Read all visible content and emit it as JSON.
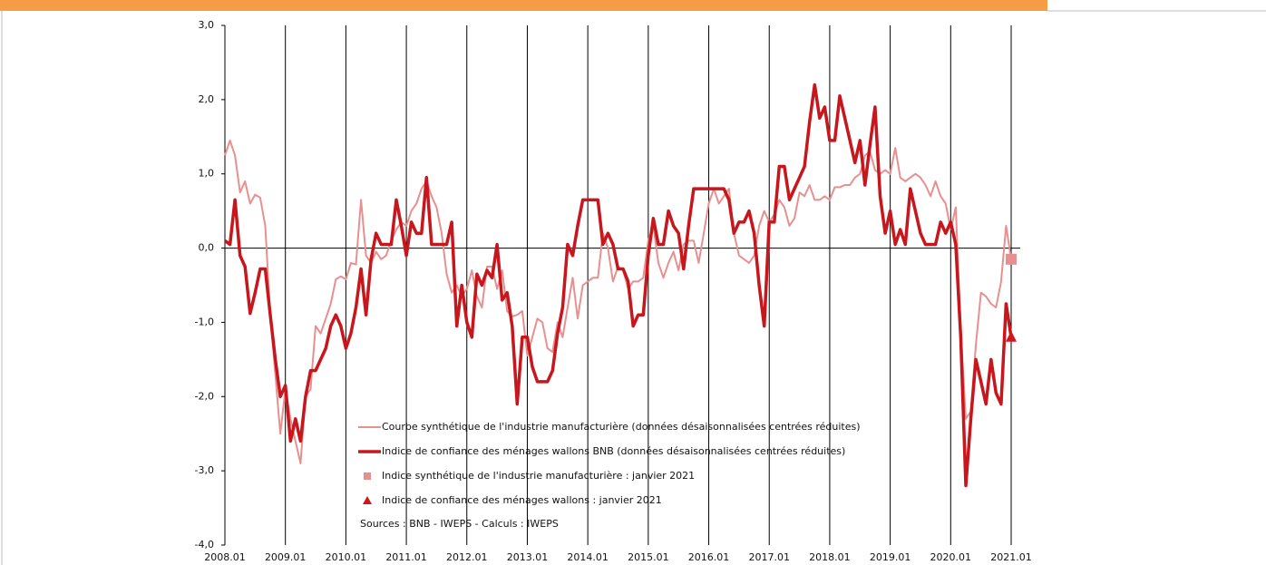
{
  "chart_data": {
    "type": "line",
    "categories": [
      "2008.01",
      null,
      null,
      null,
      null,
      null,
      null,
      null,
      null,
      null,
      null,
      null,
      "2009.01",
      null,
      null,
      null,
      null,
      null,
      null,
      null,
      null,
      null,
      null,
      null,
      "2010.01",
      null,
      null,
      null,
      null,
      null,
      null,
      null,
      null,
      null,
      null,
      null,
      "2011.01",
      null,
      null,
      null,
      null,
      null,
      null,
      null,
      null,
      null,
      null,
      null,
      "2012.01",
      null,
      null,
      null,
      null,
      null,
      null,
      null,
      null,
      null,
      null,
      null,
      "2013.01",
      null,
      null,
      null,
      null,
      null,
      null,
      null,
      null,
      null,
      null,
      null,
      "2014.01",
      null,
      null,
      null,
      null,
      null,
      null,
      null,
      null,
      null,
      null,
      null,
      "2015.01",
      null,
      null,
      null,
      null,
      null,
      null,
      null,
      null,
      null,
      null,
      null,
      "2016.01",
      null,
      null,
      null,
      null,
      null,
      null,
      null,
      null,
      null,
      null,
      null,
      "2017.01",
      null,
      null,
      null,
      null,
      null,
      null,
      null,
      null,
      null,
      null,
      null,
      "2018.01",
      null,
      null,
      null,
      null,
      null,
      null,
      null,
      null,
      null,
      null,
      null,
      "2019.01",
      null,
      null,
      null,
      null,
      null,
      null,
      null,
      null,
      null,
      null,
      null,
      "2020.01",
      null,
      null,
      null,
      null,
      null,
      null,
      null,
      null,
      null,
      null,
      null,
      "2021.01"
    ],
    "series": [
      {
        "name": "Courbe synthétique de l'industrie manufacturière (données désaisonnalisées centrées réduites)",
        "color": "#e8908f",
        "width": 2,
        "values": [
          1.25,
          1.45,
          1.25,
          0.75,
          0.9,
          0.6,
          0.72,
          0.68,
          0.3,
          -0.9,
          -1.7,
          -2.5,
          -1.9,
          -2.3,
          -2.6,
          -2.9,
          -2.0,
          -1.9,
          -1.05,
          -1.15,
          -0.95,
          -0.75,
          -0.42,
          -0.38,
          -0.42,
          -0.2,
          -0.22,
          0.65,
          -0.1,
          -0.2,
          -0.05,
          -0.15,
          -0.1,
          0.1,
          0.25,
          0.35,
          0.3,
          0.5,
          0.6,
          0.8,
          0.9,
          0.7,
          0.55,
          0.2,
          -0.35,
          -0.6,
          -0.5,
          -0.65,
          -0.55,
          -0.3,
          -0.65,
          -0.8,
          -0.25,
          -0.25,
          -0.55,
          -0.3,
          -0.85,
          -0.92,
          -0.9,
          -0.85,
          -1.45,
          -1.2,
          -0.95,
          -1.0,
          -1.35,
          -1.4,
          -1.0,
          -1.2,
          -0.8,
          -0.4,
          -0.95,
          -0.5,
          -0.45,
          -0.4,
          -0.4,
          0.2,
          0.0,
          -0.45,
          -0.25,
          -0.3,
          -0.55,
          -0.45,
          -0.45,
          -0.4,
          0.1,
          0.3,
          -0.2,
          -0.4,
          -0.2,
          -0.05,
          -0.3,
          0.05,
          0.1,
          0.1,
          -0.2,
          0.2,
          0.6,
          0.8,
          0.6,
          0.7,
          0.8,
          0.2,
          -0.1,
          -0.15,
          -0.2,
          -0.1,
          0.3,
          0.5,
          0.35,
          0.45,
          0.65,
          0.55,
          0.3,
          0.4,
          0.75,
          0.7,
          0.85,
          0.65,
          0.65,
          0.7,
          0.65,
          0.82,
          0.82,
          0.85,
          0.85,
          0.95,
          1.0,
          1.25,
          1.3,
          1.05,
          1.0,
          1.05,
          1.0,
          1.35,
          0.95,
          0.9,
          0.95,
          1.0,
          0.95,
          0.85,
          0.7,
          0.9,
          0.7,
          0.6,
          0.25,
          0.55,
          -1.1,
          -2.3,
          -2.2,
          -1.3,
          -0.6,
          -0.65,
          -0.75,
          -0.8,
          -0.45,
          0.3,
          -0.15
        ]
      },
      {
        "name": "Indice de confiance des ménages wallons BNB (données désaisonnalisées centrées réduites)",
        "color": "#c8161d",
        "width": 3.5,
        "values": [
          0.1,
          0.05,
          0.65,
          -0.1,
          -0.25,
          -0.88,
          -0.6,
          -0.28,
          -0.28,
          -0.9,
          -1.5,
          -2.0,
          -1.85,
          -2.6,
          -2.3,
          -2.6,
          -2.0,
          -1.65,
          -1.65,
          -1.5,
          -1.35,
          -1.05,
          -0.9,
          -1.05,
          -1.35,
          -1.15,
          -0.8,
          -0.28,
          -0.9,
          -0.15,
          0.2,
          0.05,
          0.05,
          0.05,
          0.65,
          0.3,
          -0.1,
          0.35,
          0.2,
          0.2,
          0.95,
          0.05,
          0.05,
          0.05,
          0.05,
          0.35,
          -1.05,
          -0.5,
          -1.0,
          -1.2,
          -0.35,
          -0.5,
          -0.3,
          -0.4,
          0.05,
          -0.7,
          -0.6,
          -1.05,
          -2.1,
          -1.2,
          -1.2,
          -1.6,
          -1.8,
          -1.8,
          -1.8,
          -1.65,
          -1.15,
          -0.8,
          0.05,
          -0.1,
          0.3,
          0.65,
          0.65,
          0.65,
          0.65,
          0.05,
          0.2,
          0.05,
          -0.28,
          -0.28,
          -0.45,
          -1.05,
          -0.9,
          -0.9,
          -0.1,
          0.4,
          0.05,
          0.05,
          0.5,
          0.3,
          0.2,
          -0.28,
          0.3,
          0.8,
          0.8,
          0.8,
          0.8,
          0.8,
          0.8,
          0.8,
          0.65,
          0.2,
          0.35,
          0.35,
          0.5,
          0.2,
          -0.5,
          -1.05,
          0.35,
          0.35,
          1.1,
          1.1,
          0.65,
          0.8,
          0.95,
          1.1,
          1.7,
          2.2,
          1.75,
          1.9,
          1.45,
          1.45,
          2.05,
          1.75,
          1.45,
          1.15,
          1.45,
          0.85,
          1.4,
          1.9,
          0.7,
          0.2,
          0.5,
          0.05,
          0.25,
          0.05,
          0.8,
          0.5,
          0.2,
          0.05,
          0.05,
          0.05,
          0.35,
          0.2,
          0.35,
          0.05,
          -1.2,
          -3.2,
          -2.3,
          -1.5,
          -1.8,
          -2.1,
          -1.5,
          -1.95,
          -2.1,
          -0.75,
          -1.2
        ]
      }
    ],
    "points": [
      {
        "name": "Indice synthétique de l'industrie manufacturière : janvier 2021",
        "x": "2021.01",
        "value": -0.15,
        "marker": "square",
        "color": "#e89090"
      },
      {
        "name": "Indice de confiance des ménages wallons : janvier 2021",
        "x": "2021.01",
        "value": -1.2,
        "marker": "triangle",
        "color": "#d0161d"
      }
    ],
    "source": "Sources : BNB - IWEPS - Calculs : IWEPS",
    "ylim": [
      -4,
      3
    ],
    "yticks": [
      {
        "value": -4,
        "label": "-4,0"
      },
      {
        "value": -3,
        "label": "-3,0"
      },
      {
        "value": -2,
        "label": "-2,0"
      },
      {
        "value": -1,
        "label": "-1,0"
      },
      {
        "value": 0,
        "label": "0,0"
      },
      {
        "value": 1,
        "label": "1,0"
      },
      {
        "value": 2,
        "label": "2,0"
      },
      {
        "value": 3,
        "label": "3,0"
      }
    ],
    "grid": "x"
  }
}
